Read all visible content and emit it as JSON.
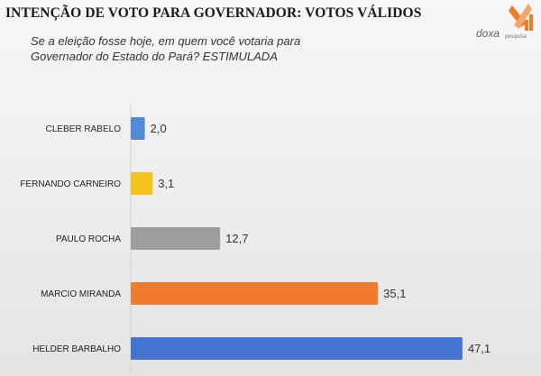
{
  "header": {
    "title": "INTENÇÃO DE VOTO PARA GOVERNADOR: VOTOS VÁLIDOS",
    "subtitle": "Se a eleição fosse hoje, em quem você votaria para Governador do Estado do Pará? ESTIMULADA"
  },
  "logo": {
    "text": "doxa",
    "subtext": "pesquisa",
    "icon": "doxa-logo-icon",
    "colors": [
      "#f07c2a",
      "#4a6fb5"
    ]
  },
  "chart_data": {
    "type": "bar",
    "orientation": "horizontal",
    "categories": [
      "CLEBER RABELO",
      "FERNANDO CARNEIRO",
      "PAULO ROCHA",
      "MARCIO MIRANDA",
      "HELDER BARBALHO"
    ],
    "values": [
      2.0,
      3.1,
      12.7,
      35.1,
      47.1
    ],
    "value_labels": [
      "2,0",
      "3,1",
      "12,7",
      "35,1",
      "47,1"
    ],
    "colors": [
      "#4f8bd6",
      "#f3c21b",
      "#9e9e9e",
      "#f07a2e",
      "#4574d0"
    ],
    "title": "INTENÇÃO DE VOTO PARA GOVERNADOR: VOTOS VÁLIDOS",
    "xlim": [
      0,
      50
    ],
    "grid": false,
    "legend": "none"
  }
}
